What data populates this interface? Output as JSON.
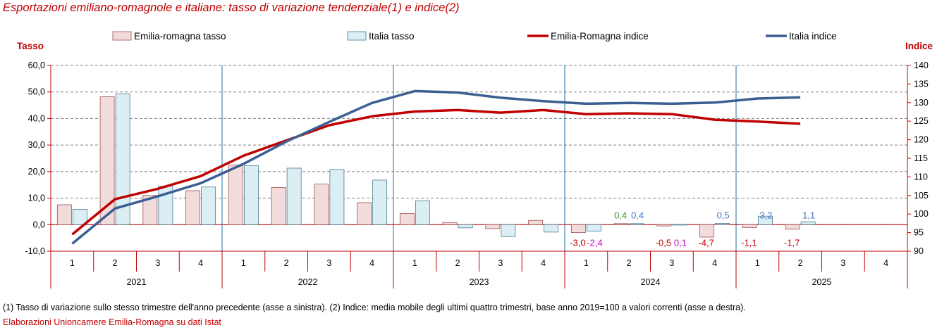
{
  "chart_data": {
    "type": "bar+line",
    "title": "Esportazioni emiliano-romagnole e italiane: tasso di variazione tendenziale(1) e indice(2)",
    "y_left_label": "Tasso",
    "y_right_label": "Indice",
    "y_left_range": [
      -10,
      60
    ],
    "y_right_range": [
      90,
      140
    ],
    "y_left_ticks": [
      "60,0",
      "50,0",
      "40,0",
      "30,0",
      "20,0",
      "10,0",
      "0,0",
      "-10,0"
    ],
    "y_right_ticks": [
      "140",
      "135",
      "130",
      "125",
      "120",
      "115",
      "110",
      "105",
      "100",
      "95",
      "90"
    ],
    "grid": "horizontal dashed",
    "legend_position": "top",
    "legend": [
      "Emilia-romagna tasso",
      "Italia tasso",
      "Emilia-Romagna indice",
      "Italia indice"
    ],
    "quarters": [
      "1",
      "2",
      "3",
      "4",
      "1",
      "2",
      "3",
      "4",
      "1",
      "2",
      "3",
      "4",
      "1",
      "2",
      "3",
      "4",
      "1",
      "2",
      "3",
      "4"
    ],
    "years": [
      "2021",
      "2022",
      "2023",
      "2024",
      "2025"
    ],
    "series": [
      {
        "name": "Emilia-romagna tasso",
        "axis": "left",
        "kind": "bar",
        "color": "#f2dcdb",
        "values": [
          7.5,
          48.2,
          11.0,
          12.8,
          22.5,
          14.0,
          15.3,
          8.3,
          4.2,
          0.8,
          -1.5,
          1.6,
          -3.0,
          0.4,
          -0.5,
          -4.7,
          -1.1,
          -1.7,
          null,
          null
        ]
      },
      {
        "name": "Italia tasso",
        "axis": "left",
        "kind": "bar",
        "color": "#dbeef3",
        "values": [
          5.8,
          49.3,
          14.5,
          14.2,
          22.2,
          21.3,
          20.8,
          16.8,
          9.0,
          -1.2,
          -4.5,
          -2.8,
          -2.4,
          0.4,
          0.1,
          0.5,
          3.2,
          1.1,
          null,
          null
        ]
      },
      {
        "name": "Emilia-Romagna indice",
        "axis": "right",
        "kind": "line",
        "color": "#c00000",
        "values": [
          94.5,
          104.0,
          106.8,
          110.2,
          115.7,
          119.8,
          123.9,
          126.3,
          127.6,
          128.0,
          127.3,
          128.0,
          126.9,
          127.1,
          126.9,
          125.4,
          124.9,
          124.3,
          null,
          null
        ]
      },
      {
        "name": "Italia indice",
        "axis": "right",
        "kind": "line",
        "color": "#3b5f93",
        "values": [
          92.0,
          101.5,
          104.8,
          108.3,
          113.5,
          119.5,
          124.8,
          129.9,
          133.1,
          132.7,
          131.3,
          130.4,
          129.7,
          129.9,
          129.7,
          130.0,
          131.1,
          131.4,
          null,
          null
        ]
      }
    ],
    "data_labels": [
      {
        "q": 12,
        "text": "-3,0",
        "color": "#c00000",
        "side": "left",
        "pos": "below"
      },
      {
        "q": 12,
        "text": "-2,4",
        "color": "#cc00cc",
        "side": "right",
        "pos": "below"
      },
      {
        "q": 13,
        "text": "0,4",
        "color": "#339933",
        "side": "left",
        "pos": "above"
      },
      {
        "q": 13,
        "text": "0,4",
        "color": "#4472c4",
        "side": "right",
        "pos": "above"
      },
      {
        "q": 14,
        "text": "-0,5",
        "color": "#c00000",
        "side": "left",
        "pos": "below"
      },
      {
        "q": 14,
        "text": "0,1",
        "color": "#cc00cc",
        "side": "right",
        "pos": "below"
      },
      {
        "q": 15,
        "text": "-4,7",
        "color": "#c00000",
        "side": "left",
        "pos": "below"
      },
      {
        "q": 15,
        "text": "0,5",
        "color": "#4472c4",
        "side": "right",
        "pos": "above"
      },
      {
        "q": 16,
        "text": "-1,1",
        "color": "#c00000",
        "side": "left",
        "pos": "below"
      },
      {
        "q": 16,
        "text": "3,2",
        "color": "#4472c4",
        "side": "right",
        "pos": "above"
      },
      {
        "q": 17,
        "text": "-1,7",
        "color": "#c00000",
        "side": "left",
        "pos": "below"
      },
      {
        "q": 17,
        "text": "1,1",
        "color": "#4472c4",
        "side": "right",
        "pos": "above"
      }
    ]
  },
  "footnote": "(1) Tasso di variazione sullo stesso trimestre dell'anno precedente (asse a sinistra). (2) Indice: media mobile degli ultimi quattro trimestri, base anno 2019=100 a valori correnti (asse a destra).",
  "source": "Elaborazioni Unioncamere Emilia-Romagna su dati Istat",
  "colors": {
    "title": "#c00000",
    "axis_title": "#c00000",
    "grid": "#808080",
    "year_separator": "#1f6fa0",
    "axis": "#c00000"
  }
}
